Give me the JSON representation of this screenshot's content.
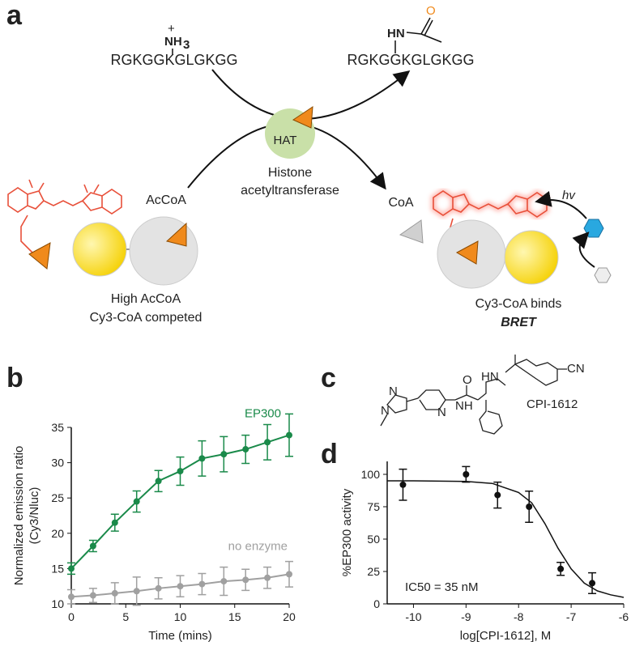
{
  "panels": {
    "a": {
      "label": "a",
      "substrate": "RGKGGKGLGKGG",
      "product": "RGKGGKGLGKGG",
      "charge": "+",
      "amine": "NH",
      "amine_sub": "3",
      "amide": "HN",
      "oxygen": "O",
      "enzyme": "HAT",
      "enzyme_name": [
        "Histone",
        "acetyltransferase"
      ],
      "cofactor": "AcCoA",
      "released": "CoA",
      "photon": "hv",
      "left_caption": [
        "High AcCoA",
        "Cy3-CoA competed"
      ],
      "right_caption": [
        "Cy3-CoA binds",
        "BRET"
      ]
    },
    "c": {
      "label": "c",
      "compound": "CPI-1612",
      "atoms": [
        "N",
        "N",
        "N",
        "O",
        "NH",
        "HN",
        "CN"
      ]
    }
  },
  "chart_data": [
    {
      "type": "line",
      "panel_label": "b",
      "x": [
        0,
        2,
        4,
        6,
        8,
        10,
        12,
        14,
        16,
        18,
        20
      ],
      "series": [
        {
          "name": "EP300",
          "color": "#1a8a4a",
          "values": [
            15,
            18.2,
            21.5,
            24.5,
            27.4,
            28.8,
            30.6,
            31.2,
            31.9,
            32.9,
            33.9
          ],
          "errors": [
            0.8,
            0.8,
            1.2,
            1.5,
            1.5,
            2,
            2.5,
            2.5,
            2,
            2.5,
            3
          ]
        },
        {
          "name": "no enzyme",
          "color": "#a0a0a0",
          "values": [
            11,
            11.2,
            11.5,
            11.8,
            12.2,
            12.5,
            12.8,
            13.2,
            13.4,
            13.7,
            14.2
          ],
          "errors": [
            1,
            1,
            1.5,
            2,
            1.5,
            1.5,
            1.5,
            2,
            1.5,
            1.5,
            1.8
          ]
        }
      ],
      "xlabel": "Time (mins)",
      "ylabel": [
        "Normalized emission ratio",
        "(Cy3/Nluc)"
      ],
      "xlim": [
        0,
        20
      ],
      "xticks": [
        0,
        5,
        10,
        15,
        20
      ],
      "ylim": [
        10,
        35
      ],
      "yticks": [
        10,
        15,
        20,
        25,
        30,
        35
      ]
    },
    {
      "type": "scatter",
      "panel_label": "d",
      "x": [
        -10.2,
        -9,
        -8.4,
        -7.8,
        -7.2,
        -6.6
      ],
      "values": [
        92,
        100,
        84,
        75,
        27,
        16
      ],
      "errors": [
        12,
        6,
        10,
        12,
        5,
        8
      ],
      "color": "#111111",
      "fit": {
        "x": [
          -10.5,
          -10,
          -9.5,
          -9,
          -8.5,
          -8,
          -7.75,
          -7.5,
          -7.25,
          -7,
          -6.75,
          -6.5,
          -6.25,
          -6
        ],
        "values": [
          95,
          95,
          94.8,
          94.5,
          93,
          86,
          78,
          62,
          43,
          27,
          16,
          10,
          7,
          5
        ]
      },
      "annotation": "IC50 = 35 nM",
      "xlabel": "log[CPI-1612], M",
      "ylabel": "%EP300 activity",
      "xlim": [
        -10.5,
        -6
      ],
      "xticks": [
        -10,
        -9,
        -8,
        -7,
        -6
      ],
      "ylim": [
        0,
        110
      ],
      "yticks": [
        0,
        25,
        50,
        75,
        100
      ]
    }
  ]
}
